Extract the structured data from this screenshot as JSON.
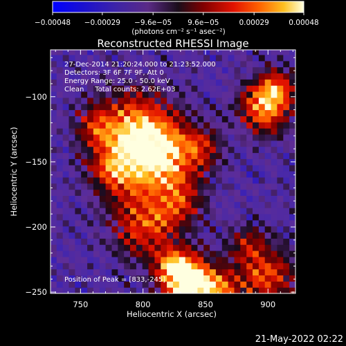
{
  "chart_data": {
    "type": "heatmap",
    "title": "Reconstructed RHESSI Image",
    "xlabel": "Heliocentric X (arcsec)",
    "ylabel": "Heliocentric Y (arcsec)",
    "xlim": [
      726,
      922
    ],
    "ylim": [
      -251,
      -64
    ],
    "x_ticks": [
      750,
      800,
      850,
      900
    ],
    "x_tick_labels": [
      "750",
      "800",
      "850",
      "900"
    ],
    "y_ticks": [
      -100,
      -150,
      -200,
      -250
    ],
    "y_tick_labels": [
      "−100",
      "−150",
      "−200",
      "−250"
    ],
    "colorbar": {
      "ticks": [
        -0.00048,
        -0.00029,
        -9.6e-05,
        9.6e-05,
        0.00029,
        0.00048
      ],
      "tick_labels": [
        "−0.00048",
        "−0.00029",
        "−9.6e−05",
        "9.6e−05",
        "0.00029",
        "0.00048"
      ],
      "unit_label": "(photons cm⁻² s⁻¹ asec⁻²)"
    },
    "annotations": {
      "time_range": "27-Dec-2014 21:20:24.000 to 21:23:52.000",
      "detectors": "Detectors: 3F 6F 7F 9F, Att 0",
      "energy_range": "Energy Range: 25.0 - 50.0 keV",
      "clean_counts": "Clean     Total counts: 2.62E+03",
      "peak_position": "Position of Peak = [833,-245]"
    },
    "peak": [
      833,
      -245
    ]
  },
  "timestamp": "21-May-2022 02:22"
}
